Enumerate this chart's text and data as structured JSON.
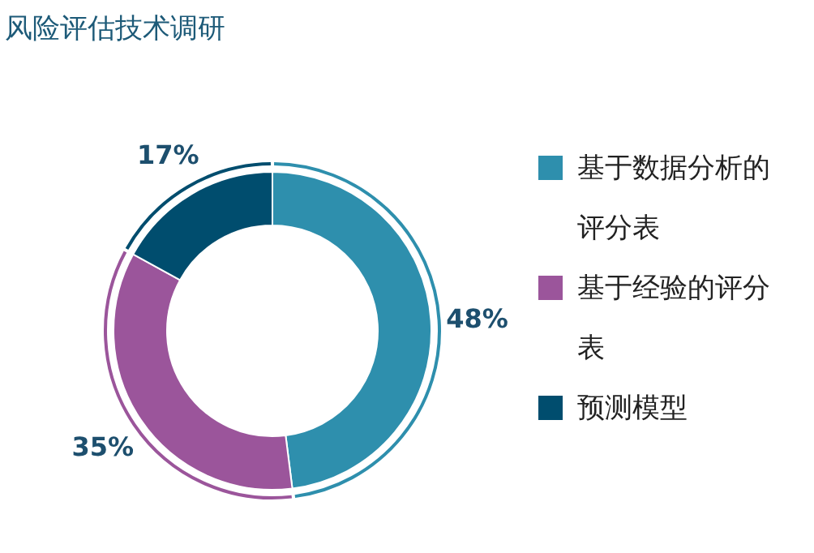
{
  "chart_data": {
    "type": "donut",
    "title": "风险评估技术调研",
    "categories": [
      "基于数据分析的评分表",
      "基于经验的评分表",
      "预测模型"
    ],
    "values": [
      48,
      35,
      17
    ],
    "colors": [
      "#2e8fad",
      "#9b559b",
      "#004d6e"
    ],
    "value_labels": [
      "48%",
      "35%",
      "17%"
    ],
    "legend": "right"
  }
}
